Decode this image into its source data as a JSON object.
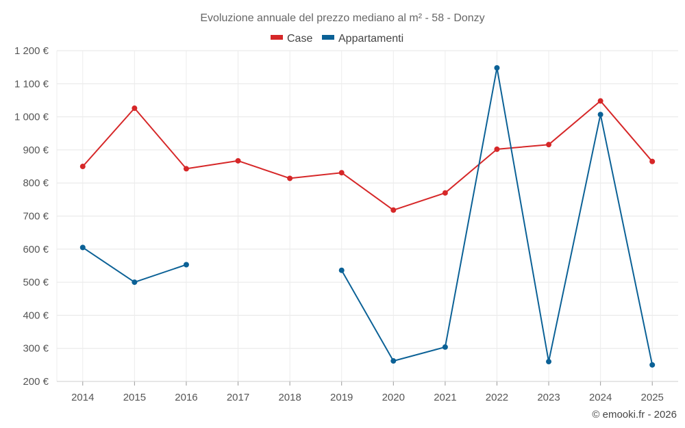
{
  "chart_data": {
    "type": "line",
    "title": "Evoluzione annuale del prezzo mediano al m² - 58 - Donzy",
    "xlabel": "",
    "ylabel": "",
    "categories": [
      "2014",
      "2015",
      "2016",
      "2017",
      "2018",
      "2019",
      "2020",
      "2021",
      "2022",
      "2023",
      "2024",
      "2025"
    ],
    "y_tick_labels": [
      "200 €",
      "300 €",
      "400 €",
      "500 €",
      "600 €",
      "700 €",
      "800 €",
      "900 €",
      "1 000 €",
      "1 100 €",
      "1 200 €"
    ],
    "ylim": [
      200,
      1200
    ],
    "grid": true,
    "legend_position": "top-center",
    "series": [
      {
        "name": "Case",
        "color": "#d62728",
        "values": [
          850,
          1026,
          843,
          867,
          814,
          831,
          718,
          770,
          902,
          916,
          1048,
          865
        ]
      },
      {
        "name": "Appartamenti",
        "color": "#0b6196",
        "values": [
          605,
          500,
          553,
          null,
          null,
          536,
          262,
          304,
          1148,
          260,
          1007,
          250
        ]
      }
    ]
  },
  "credit": "© emooki.fr - 2026"
}
